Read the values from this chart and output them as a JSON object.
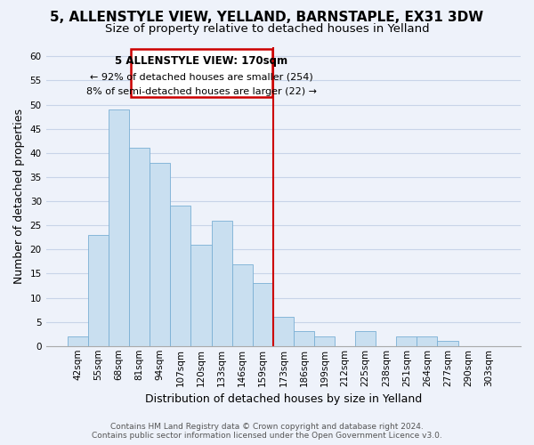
{
  "title": "5, ALLENSTYLE VIEW, YELLAND, BARNSTAPLE, EX31 3DW",
  "subtitle": "Size of property relative to detached houses in Yelland",
  "xlabel": "Distribution of detached houses by size in Yelland",
  "ylabel": "Number of detached properties",
  "categories": [
    "42sqm",
    "55sqm",
    "68sqm",
    "81sqm",
    "94sqm",
    "107sqm",
    "120sqm",
    "133sqm",
    "146sqm",
    "159sqm",
    "173sqm",
    "186sqm",
    "199sqm",
    "212sqm",
    "225sqm",
    "238sqm",
    "251sqm",
    "264sqm",
    "277sqm",
    "290sqm",
    "303sqm"
  ],
  "values": [
    2,
    23,
    49,
    41,
    38,
    29,
    21,
    26,
    17,
    13,
    6,
    3,
    2,
    0,
    3,
    0,
    2,
    2,
    1,
    0,
    0
  ],
  "bar_color": "#c9dff0",
  "bar_edge_color": "#7aafd4",
  "highlight_line_color": "#cc0000",
  "highlight_line_index": 10,
  "annotation_title": "5 ALLENSTYLE VIEW: 170sqm",
  "annotation_line1": "← 92% of detached houses are smaller (254)",
  "annotation_line2": "8% of semi-detached houses are larger (22) →",
  "annotation_box_color": "#cc0000",
  "ylim": [
    0,
    62
  ],
  "yticks": [
    0,
    5,
    10,
    15,
    20,
    25,
    30,
    35,
    40,
    45,
    50,
    55,
    60
  ],
  "background_color": "#eef2fa",
  "grid_color": "#c8d4e8",
  "footer1": "Contains HM Land Registry data © Crown copyright and database right 2024.",
  "footer2": "Contains public sector information licensed under the Open Government Licence v3.0.",
  "title_fontsize": 11,
  "subtitle_fontsize": 9.5,
  "axis_label_fontsize": 9,
  "tick_fontsize": 7.5,
  "footer_fontsize": 6.5
}
